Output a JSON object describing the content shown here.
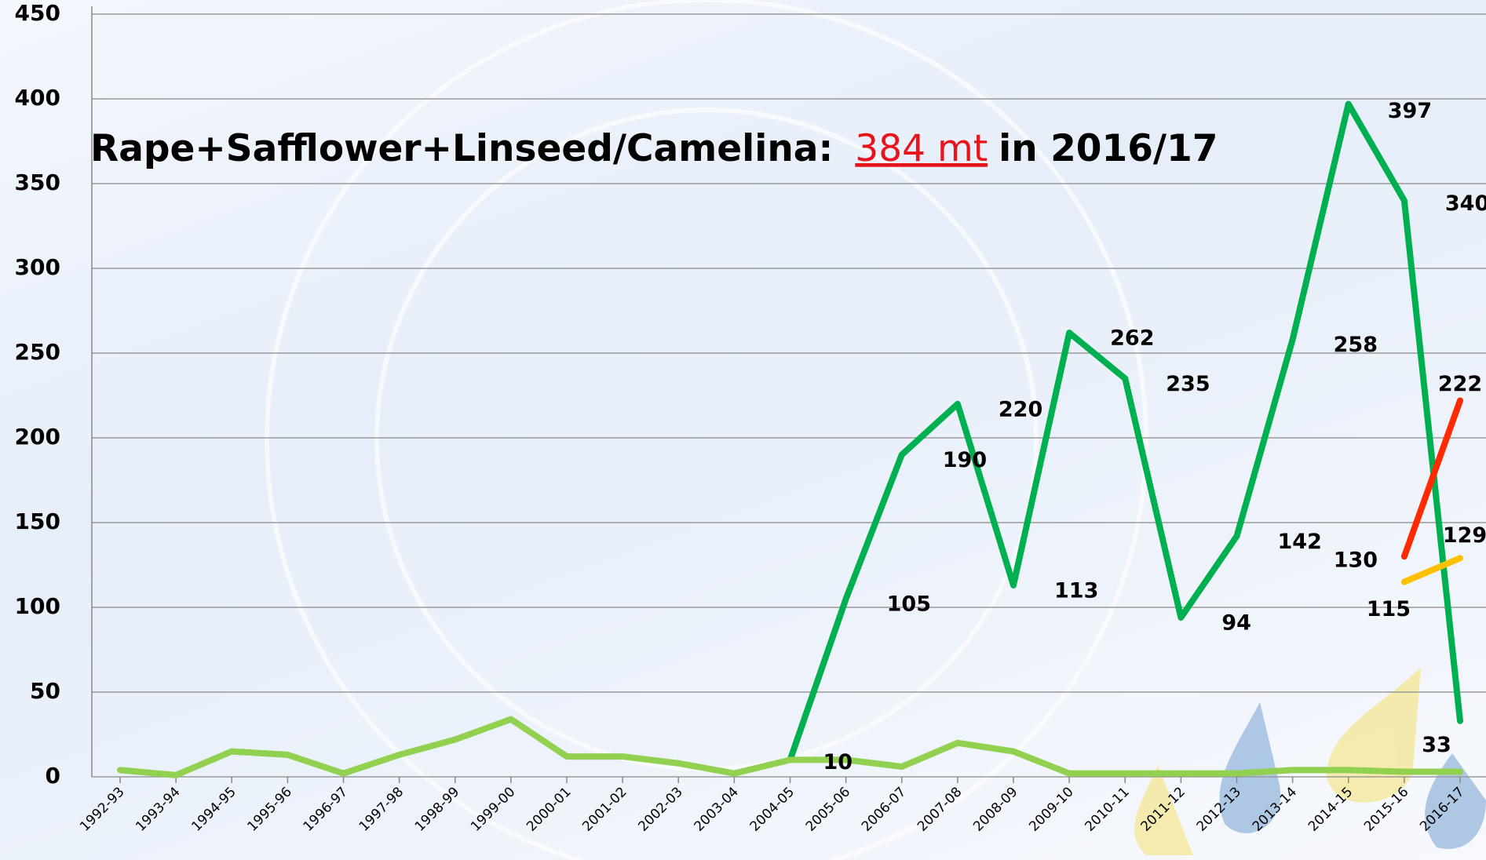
{
  "chart_data": {
    "type": "line",
    "annotation": {
      "prefix": "Rape+Safflower+Linseed/Camelina:",
      "highlight": "384 mt",
      "suffix": "in 2016/17"
    },
    "categories": [
      "1992-93",
      "1993-94",
      "1994-95",
      "1995-96",
      "1996-97",
      "1997-98",
      "1998-99",
      "1999-00",
      "2000-01",
      "2001-02",
      "2002-03",
      "2003-04",
      "2004-05",
      "2005-06",
      "2006-07",
      "2007-08",
      "2008-09",
      "2009-10",
      "2010-11",
      "2011-12",
      "2012-13",
      "2013-14",
      "2014-15",
      "2015-16",
      "2016-17"
    ],
    "series": [
      {
        "color": "#00b050",
        "labels": true,
        "values": [
          null,
          null,
          null,
          null,
          null,
          null,
          null,
          null,
          null,
          null,
          null,
          null,
          10,
          105,
          190,
          220,
          113,
          262,
          235,
          94,
          142,
          258,
          397,
          340,
          33
        ]
      },
      {
        "color": "#92d050",
        "labels": false,
        "values": [
          4,
          1,
          15,
          13,
          2,
          13,
          22,
          34,
          12,
          12,
          8,
          2,
          10,
          10,
          6,
          20,
          15,
          2,
          2,
          2,
          2,
          4,
          4,
          3,
          3
        ]
      },
      {
        "color": "#ff2a00",
        "labels": true,
        "values": [
          null,
          null,
          null,
          null,
          null,
          null,
          null,
          null,
          null,
          null,
          null,
          null,
          null,
          null,
          null,
          null,
          null,
          null,
          null,
          null,
          null,
          null,
          null,
          130,
          222
        ]
      },
      {
        "color": "#ffc000",
        "labels": true,
        "values": [
          null,
          null,
          null,
          null,
          null,
          null,
          null,
          null,
          null,
          null,
          null,
          null,
          null,
          null,
          null,
          null,
          null,
          null,
          null,
          null,
          null,
          null,
          null,
          115,
          129
        ]
      }
    ],
    "ylim": [
      0,
      450
    ],
    "yticks": [
      0,
      50,
      100,
      150,
      200,
      250,
      300,
      350,
      400,
      450
    ],
    "grid": true
  }
}
